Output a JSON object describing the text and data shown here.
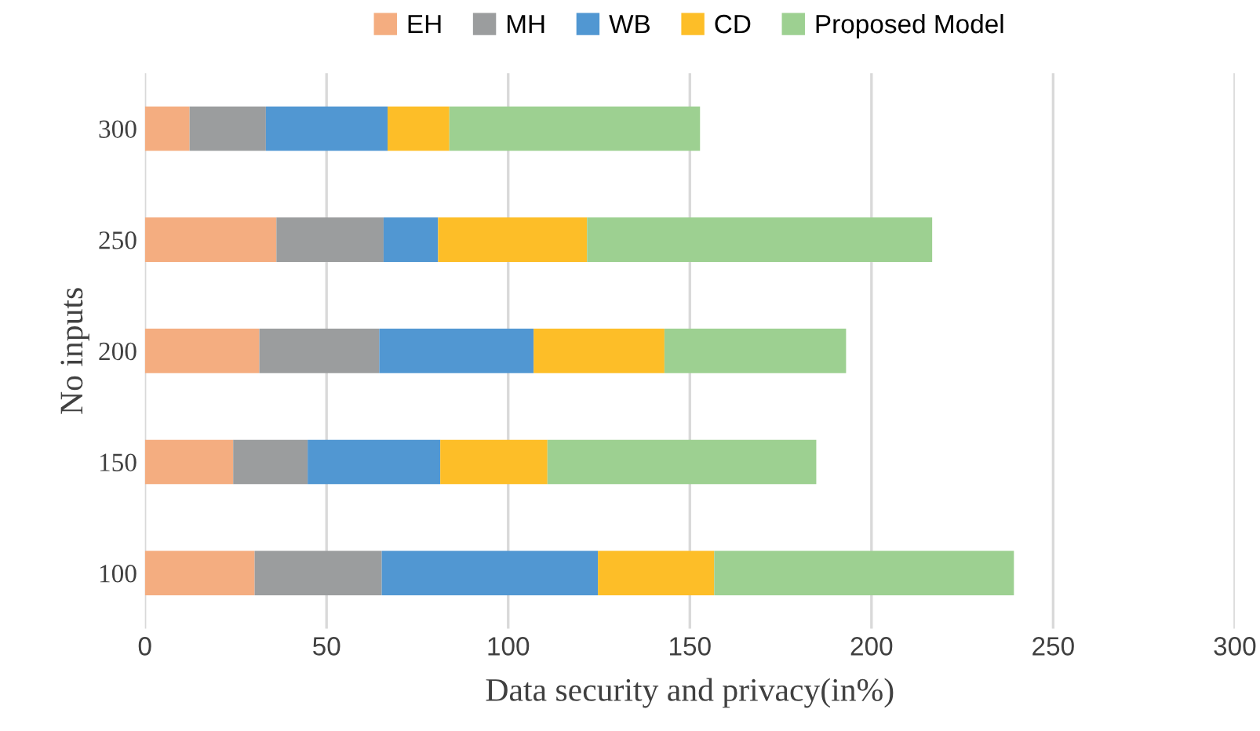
{
  "chart_data": {
    "type": "bar",
    "orientation": "horizontal",
    "stacked": true,
    "categories": [
      "300",
      "250",
      "200",
      "150",
      "100"
    ],
    "series": [
      {
        "name": "EH",
        "color": "#f4ad80",
        "values": [
          12.3,
          36.2,
          31.5,
          24.3,
          30.2
        ]
      },
      {
        "name": "MH",
        "color": "#9b9d9e",
        "values": [
          21,
          29.5,
          33,
          20.5,
          35
        ]
      },
      {
        "name": "WB",
        "color": "#5197d2",
        "values": [
          33.5,
          15,
          42.5,
          36.5,
          59.5
        ]
      },
      {
        "name": "CD",
        "color": "#fdbe28",
        "values": [
          17,
          41,
          36,
          29.5,
          32
        ]
      },
      {
        "name": "Proposed Model",
        "color": "#9dd091",
        "values": [
          69,
          95,
          50,
          74,
          82.5
        ]
      }
    ],
    "xlim": [
      0,
      300
    ],
    "xticks": [
      0,
      50,
      100,
      150,
      200,
      250,
      300
    ],
    "xlabel": "Data security and privacy(in%)",
    "ylabel": "No inputs",
    "grid": "x",
    "legend": "top"
  }
}
